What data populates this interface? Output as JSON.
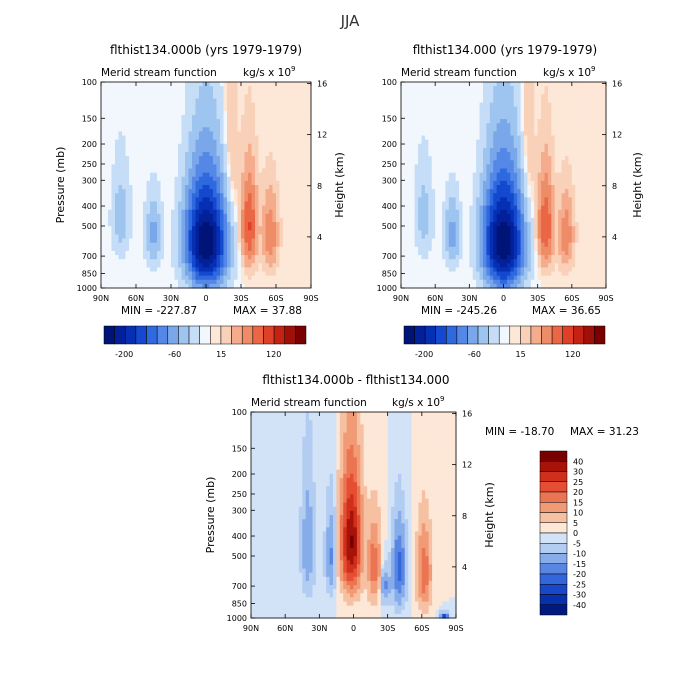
{
  "figure": {
    "title": "JJA"
  },
  "colors": {
    "neg": [
      "#f1f7fd",
      "#c5ddf7",
      "#9ec4f0",
      "#7aa7ea",
      "#5588e6",
      "#2f69de",
      "#1448cf",
      "#0630b4",
      "#02209a",
      "#001478"
    ],
    "pos": [
      "#fde7d7",
      "#f9d0b8",
      "#f4ac8c",
      "#ef8c68",
      "#ea6645",
      "#e04028",
      "#c42314",
      "#a01008",
      "#7a0000"
    ],
    "diff_neg": [
      "#d2e3f7",
      "#b3cdf2",
      "#86acea",
      "#5a86e3",
      "#3366db",
      "#1847c8",
      "#0731ab",
      "#001a80"
    ],
    "diff_pos": [
      "#fde7d7",
      "#f6c0a2",
      "#f09a76",
      "#eb7553",
      "#e54e33",
      "#cf2f1b",
      "#a71309",
      "#7a0000"
    ]
  },
  "chart_data": [
    {
      "id": "panel-case",
      "type": "heatmap",
      "title": "flthist134.000b (yrs 1979-1979)",
      "subtitle": "Merid stream function",
      "units_base": "kg/s x 10",
      "units_exp": "9",
      "ylabel": "Pressure (mb)",
      "ylabel_right": "Height (km)",
      "x_ticks": [
        "90N",
        "60N",
        "30N",
        "0",
        "30S",
        "60S",
        "90S"
      ],
      "x_range": [
        90,
        -90
      ],
      "y_range": [
        1000,
        100
      ],
      "y_ticks": [
        100,
        150,
        200,
        250,
        300,
        400,
        500,
        700,
        850,
        1000
      ],
      "height_ticks": [
        16,
        12,
        8,
        4
      ],
      "min_label": "MIN = -227.87",
      "max_label": "MAX =  37.88",
      "min": -227.87,
      "max": 37.88,
      "colorbar_labels": [
        "-200",
        "-60",
        "15",
        "120"
      ],
      "features": [
        {
          "lat": 0,
          "p": 600,
          "w": 14,
          "h": 280,
          "amp": -227.87
        },
        {
          "lat": 45,
          "p": 550,
          "w": 6,
          "h": 180,
          "amp": -25
        },
        {
          "lat": 73,
          "p": 450,
          "w": 7,
          "h": 200,
          "amp": -15
        },
        {
          "lat": -37,
          "p": 500,
          "w": 6,
          "h": 220,
          "amp": 37.88
        },
        {
          "lat": -55,
          "p": 550,
          "w": 6,
          "h": 200,
          "amp": 22
        },
        {
          "lat": -20,
          "p": 350,
          "w": 7,
          "h": 300,
          "amp": 8
        },
        {
          "lat": 15,
          "p": 800,
          "w": 5,
          "h": 120,
          "amp": 6
        }
      ]
    },
    {
      "id": "panel-control",
      "type": "heatmap",
      "title": "flthist134.000 (yrs 1979-1979)",
      "subtitle": "Merid stream function",
      "units_base": "kg/s x 10",
      "units_exp": "9",
      "ylabel": "",
      "ylabel_right": "Height (km)",
      "x_ticks": [
        "90N",
        "60N",
        "30N",
        "0",
        "30S",
        "60S",
        "90S"
      ],
      "x_range": [
        90,
        -90
      ],
      "y_range": [
        1000,
        100
      ],
      "y_ticks": [
        100,
        150,
        200,
        250,
        300,
        400,
        500,
        700,
        850,
        1000
      ],
      "height_ticks": [
        16,
        12,
        8,
        4
      ],
      "min_label": "MIN = -245.26",
      "max_label": "MAX =  36.65",
      "min": -245.26,
      "max": 36.65,
      "colorbar_labels": [
        "-200",
        "-60",
        "15",
        "120"
      ],
      "features": [
        {
          "lat": 0,
          "p": 600,
          "w": 14,
          "h": 290,
          "amp": -245.26
        },
        {
          "lat": 45,
          "p": 550,
          "w": 6,
          "h": 180,
          "amp": -28
        },
        {
          "lat": 70,
          "p": 450,
          "w": 7,
          "h": 200,
          "amp": -15
        },
        {
          "lat": -37,
          "p": 500,
          "w": 6,
          "h": 220,
          "amp": 36.65
        },
        {
          "lat": -55,
          "p": 550,
          "w": 6,
          "h": 200,
          "amp": 20
        },
        {
          "lat": -20,
          "p": 350,
          "w": 7,
          "h": 300,
          "amp": 8
        }
      ]
    },
    {
      "id": "panel-difference",
      "type": "heatmap",
      "title": "flthist134.000b - flthist134.000",
      "subtitle": "Merid stream function",
      "units_base": "kg/s x 10",
      "units_exp": "9",
      "ylabel": "Pressure (mb)",
      "ylabel_right": "Height (km)",
      "x_ticks": [
        "90N",
        "60N",
        "30N",
        "0",
        "30S",
        "60S",
        "90S"
      ],
      "x_range": [
        90,
        -90
      ],
      "y_range": [
        1000,
        100
      ],
      "y_ticks": [
        100,
        150,
        200,
        250,
        300,
        400,
        500,
        700,
        850,
        1000
      ],
      "height_ticks": [
        16,
        12,
        8,
        4
      ],
      "min_label": "MIN = -18.70",
      "max_label": "MAX =  31.23",
      "min": -18.7,
      "max": 31.23,
      "colorbar_labels": [
        "40",
        "30",
        "25",
        "20",
        "15",
        "10",
        "5",
        "0",
        "-5",
        "-10",
        "-15",
        "-20",
        "-25",
        "-30",
        "-40"
      ],
      "levels": [
        -40,
        -30,
        -25,
        -20,
        -15,
        -10,
        -5,
        0,
        5,
        10,
        15,
        20,
        25,
        30,
        40
      ],
      "features": [
        {
          "lat": 2,
          "p": 430,
          "w": 7,
          "h": 220,
          "amp": 31.23
        },
        {
          "lat": -18,
          "p": 550,
          "w": 5,
          "h": 200,
          "amp": 8
        },
        {
          "lat": -40,
          "p": 580,
          "w": 5,
          "h": 220,
          "amp": -12
        },
        {
          "lat": -28,
          "p": 700,
          "w": 4,
          "h": 120,
          "amp": -6
        },
        {
          "lat": -62,
          "p": 600,
          "w": 5,
          "h": 220,
          "amp": 9
        },
        {
          "lat": -80,
          "p": 990,
          "w": 3,
          "h": 40,
          "amp": -18.7
        },
        {
          "lat": 20,
          "p": 500,
          "w": 4,
          "h": 200,
          "amp": -6
        },
        {
          "lat": 40,
          "p": 450,
          "w": 5,
          "h": 250,
          "amp": -5
        }
      ]
    }
  ]
}
